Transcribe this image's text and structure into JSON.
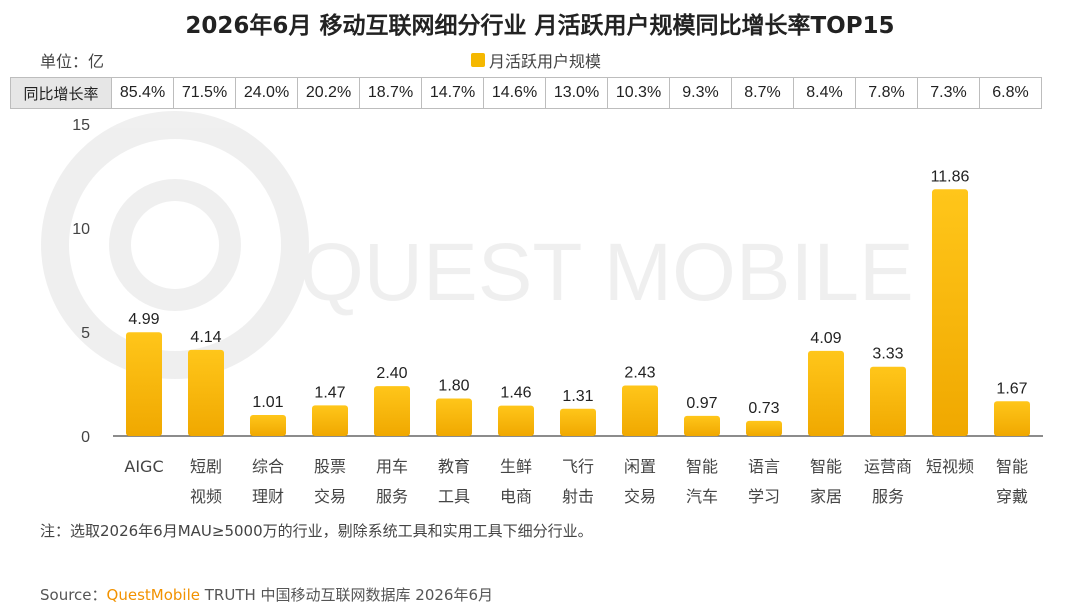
{
  "title": "2026年6月 移动互联网细分行业 月活跃用户规模同比增长率TOP15",
  "unit_label": "单位：亿",
  "legend": {
    "label": "月活跃用户规模",
    "color": "#f5b800"
  },
  "growth_row_header": "同比增长率",
  "growth_rates": [
    "85.4%",
    "71.5%",
    "24.0%",
    "20.2%",
    "18.7%",
    "14.7%",
    "14.6%",
    "13.0%",
    "10.3%",
    "9.3%",
    "8.7%",
    "8.4%",
    "7.8%",
    "7.3%",
    "6.8%"
  ],
  "watermark": "QUEST MOBILE",
  "note": "注：选取2026年6月MAU≥5000万的行业，剔除系统工具和实用工具下细分行业。",
  "source": {
    "prefix": "Source：",
    "brand": "QuestMobile",
    "rest": " TRUTH 中国移动互联网数据库 2026年6月"
  },
  "chart_data": {
    "type": "bar",
    "title": "2026年6月 移动互联网细分行业 月活跃用户规模同比增长率TOP15",
    "categories": [
      [
        "AIGC"
      ],
      [
        "短剧",
        "视频"
      ],
      [
        "综合",
        "理财"
      ],
      [
        "股票",
        "交易"
      ],
      [
        "用车",
        "服务"
      ],
      [
        "教育",
        "工具"
      ],
      [
        "生鲜",
        "电商"
      ],
      [
        "飞行",
        "射击"
      ],
      [
        "闲置",
        "交易"
      ],
      [
        "智能",
        "汽车"
      ],
      [
        "语言",
        "学习"
      ],
      [
        "智能",
        "家居"
      ],
      [
        "运营商",
        "服务"
      ],
      [
        "短视频"
      ],
      [
        "智能",
        "穿戴"
      ]
    ],
    "series": [
      {
        "name": "月活跃用户规模",
        "values": [
          4.99,
          4.14,
          1.01,
          1.47,
          2.4,
          1.8,
          1.46,
          1.31,
          2.43,
          0.97,
          0.73,
          4.09,
          3.33,
          11.86,
          1.67
        ],
        "labels": [
          "4.99",
          "4.14",
          "1.01",
          "1.47",
          "2.40",
          "1.80",
          "1.46",
          "1.31",
          "2.43",
          "0.97",
          "0.73",
          "4.09",
          "3.33",
          "11.86",
          "1.67"
        ]
      }
    ],
    "ylim": [
      0,
      15
    ],
    "yticks": [
      "0",
      "5",
      "10",
      "15"
    ],
    "colors": {
      "bar_top": "#ffc61a",
      "bar_bottom": "#f0a800",
      "axis": "#666666"
    }
  }
}
